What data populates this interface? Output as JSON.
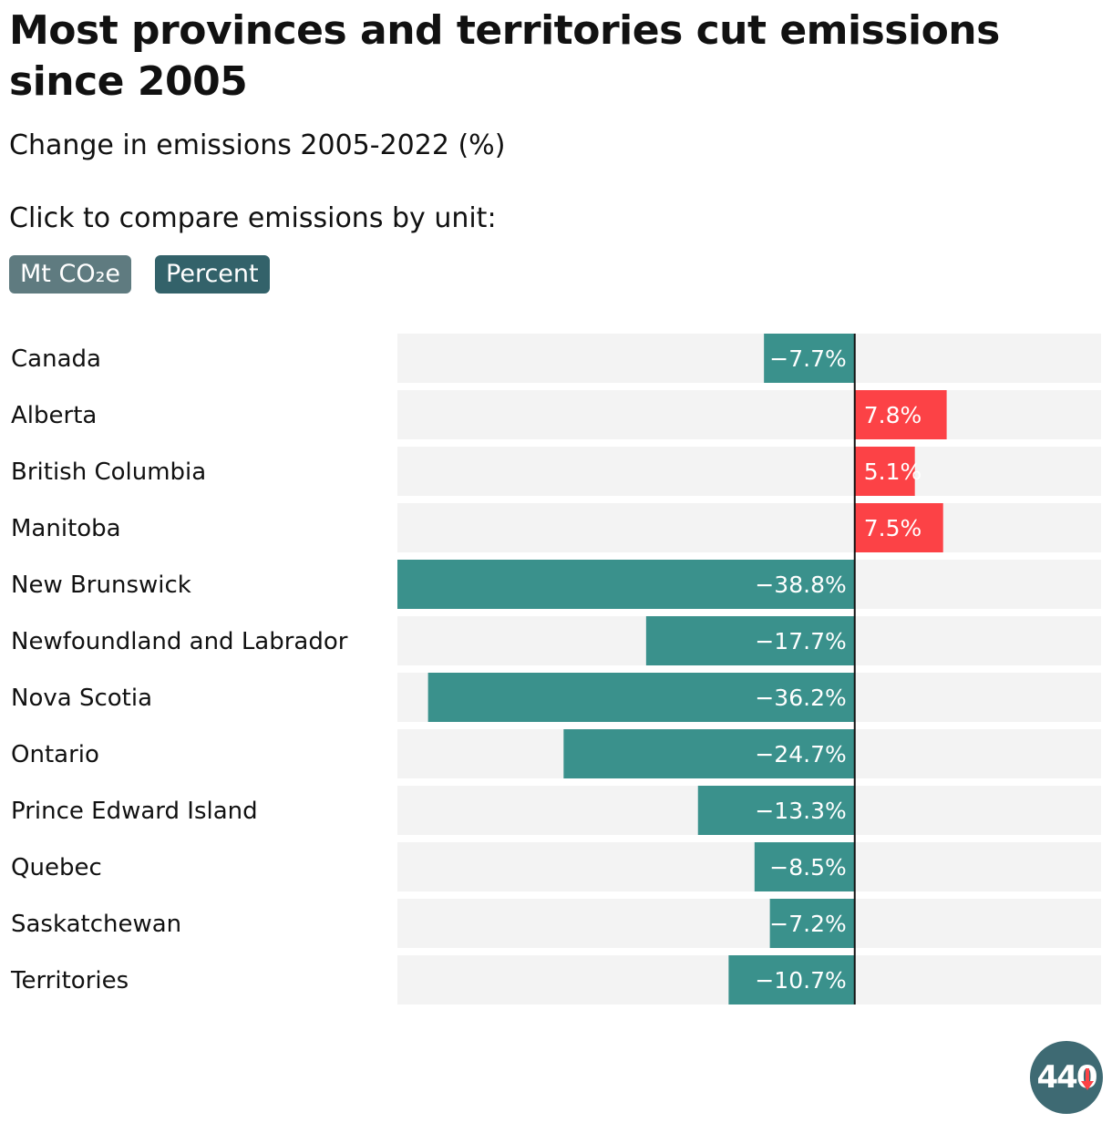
{
  "header": {
    "title": "Most provinces and territories cut emissions since 2005",
    "subtitle": "Change in emissions 2005-2022 (%)",
    "instruction": "Click to compare emissions by unit:"
  },
  "toggles": [
    {
      "label": "Mt CO₂e",
      "active": false
    },
    {
      "label": "Percent",
      "active": true
    }
  ],
  "logo": {
    "text": "440",
    "icon": "down-arrow-icon"
  },
  "colors": {
    "negative": "#3a918c",
    "positive": "#fc4246",
    "track": "#f3f3f3",
    "zero_line": "#111111"
  },
  "chart_data": {
    "type": "bar",
    "orientation": "horizontal",
    "title": "Most provinces and territories cut emissions since 2005",
    "subtitle": "Change in emissions 2005-2022 (%)",
    "xlabel": "",
    "ylabel": "",
    "xlim": [
      -38.8,
      20.9
    ],
    "unit": "%",
    "categories": [
      "Canada",
      "Alberta",
      "British Columbia",
      "Manitoba",
      "New Brunswick",
      "Newfoundland and Labrador",
      "Nova Scotia",
      "Ontario",
      "Prince Edward Island",
      "Quebec",
      "Saskatchewan",
      "Territories"
    ],
    "values": [
      -7.7,
      7.8,
      5.1,
      7.5,
      -38.8,
      -17.7,
      -36.2,
      -24.7,
      -13.3,
      -8.5,
      -7.2,
      -10.7
    ],
    "value_labels": [
      "−7.7%",
      "7.8%",
      "5.1%",
      "7.5%",
      "−38.8%",
      "−17.7%",
      "−36.2%",
      "−24.7%",
      "−13.3%",
      "−8.5%",
      "−7.2%",
      "−10.7%"
    ],
    "grid": false,
    "legend": "none"
  }
}
